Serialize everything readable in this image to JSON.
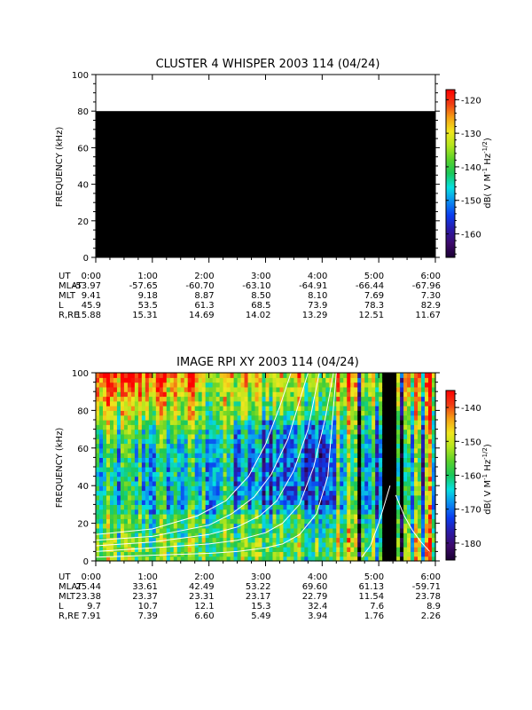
{
  "palette": {
    "background": "#ffffff",
    "empty_data": "#000000",
    "contour": "#ffffff",
    "colormap": [
      "#1a0033",
      "#3d0a6b",
      "#2a1aa8",
      "#0a3cf0",
      "#0a8cf0",
      "#06e0e0",
      "#19c85a",
      "#5ad22a",
      "#b4e61e",
      "#f0e61e",
      "#f5a014",
      "#f03c14",
      "#ff0000"
    ]
  },
  "chart_data": [
    {
      "id": "whisper",
      "type": "heatmap",
      "title": "CLUSTER 4 WHISPER 2003 114 (04/24)",
      "ylabel": "FREQUENCY (kHz)",
      "ylim": [
        0,
        100
      ],
      "yticks": [
        "0",
        "20",
        "40",
        "60",
        "80",
        "100"
      ],
      "xlim": [
        0,
        6
      ],
      "note": "",
      "data_fill": "no data (black) 0–80 kHz",
      "colorbar": {
        "label": "dB( V M-1 Hz-1/2)",
        "label_main": "dB( V M",
        "label_exp1": "-1",
        "label_mid": " Hz",
        "label_exp2": "-1/2",
        "label_end": ")",
        "range": [
          -167,
          -117
        ],
        "ticks": [
          "-120",
          "-130",
          "-140",
          "-150",
          "-160"
        ]
      },
      "ephemeris": {
        "rows": [
          {
            "label": "UT",
            "values": [
              "0:00",
              "1:00",
              "2:00",
              "3:00",
              "4:00",
              "5:00",
              "6:00"
            ]
          },
          {
            "label": "MLAT",
            "values": [
              "-53.97",
              "-57.65",
              "-60.70",
              "-63.10",
              "-64.91",
              "-66.44",
              "-67.96"
            ]
          },
          {
            "label": "MLT",
            "values": [
              "9.41",
              "9.18",
              "8.87",
              "8.50",
              "8.10",
              "7.69",
              "7.30"
            ]
          },
          {
            "label": "L",
            "values": [
              "45.9",
              "53.5",
              "61.3",
              "68.5",
              "73.9",
              "78.3",
              "82.9"
            ]
          },
          {
            "label": "R,RE",
            "values": [
              "15.88",
              "15.31",
              "14.69",
              "14.02",
              "13.29",
              "12.51",
              "11.67"
            ]
          }
        ]
      }
    },
    {
      "id": "rpi",
      "type": "heatmap",
      "title": "IMAGE RPI XY 2003 114 (04/24)",
      "ylabel": "FREQUENCY (kHz)",
      "ylim": [
        0,
        100
      ],
      "yticks": [
        "0",
        "20",
        "40",
        "60",
        "80",
        "100"
      ],
      "xlim": [
        0,
        6
      ],
      "colorbar": {
        "label": "dB( V M-1 Hz-1/2)",
        "label_main": "dB( V M",
        "label_exp1": "-1",
        "label_mid": " Hz",
        "label_exp2": "-1/2",
        "label_end": ")",
        "range": [
          -185,
          -135
        ],
        "ticks": [
          "-140",
          "-150",
          "-160",
          "-170",
          "-180"
        ]
      },
      "ephemeris": {
        "rows": [
          {
            "label": "UT",
            "values": [
              "0:00",
              "1:00",
              "2:00",
              "3:00",
              "4:00",
              "5:00",
              "6:00"
            ]
          },
          {
            "label": "MLAT",
            "values": [
              "25.44",
              "33.61",
              "42.49",
              "53.22",
              "69.60",
              "61.13",
              "-59.71"
            ]
          },
          {
            "label": "MLT",
            "values": [
              "23.38",
              "23.37",
              "23.31",
              "23.17",
              "22.79",
              "11.54",
              "23.78"
            ]
          },
          {
            "label": "L",
            "values": [
              "9.7",
              "10.7",
              "12.1",
              "15.3",
              "32.4",
              "7.6",
              "8.9"
            ]
          },
          {
            "label": "R,RE",
            "values": [
              "7.91",
              "7.39",
              "6.60",
              "5.49",
              "3.94",
              "1.76",
              "2.26"
            ]
          }
        ]
      },
      "overlay_curves": [
        {
          "series": "contour-1",
          "x": [
            0.0,
            1.0,
            2.0,
            2.5,
            3.0,
            3.3,
            3.6,
            3.9,
            4.1,
            4.25
          ],
          "y": [
            2,
            3,
            4,
            5,
            7,
            9,
            14,
            25,
            45,
            100
          ]
        },
        {
          "series": "contour-2",
          "x": [
            0.0,
            1.0,
            2.0,
            2.5,
            3.0,
            3.3,
            3.6,
            3.85,
            4.05,
            4.2
          ],
          "y": [
            5,
            7,
            9,
            11,
            15,
            20,
            30,
            50,
            75,
            100
          ]
        },
        {
          "series": "contour-3",
          "x": [
            0.0,
            1.0,
            2.0,
            2.5,
            2.9,
            3.2,
            3.5,
            3.75,
            3.95
          ],
          "y": [
            8,
            10,
            14,
            18,
            24,
            32,
            48,
            70,
            100
          ]
        },
        {
          "series": "contour-4",
          "x": [
            0.0,
            1.0,
            2.0,
            2.4,
            2.8,
            3.1,
            3.4,
            3.6,
            3.75
          ],
          "y": [
            11,
            13,
            19,
            25,
            34,
            46,
            65,
            85,
            100
          ]
        },
        {
          "series": "contour-5",
          "x": [
            0.0,
            1.0,
            1.8,
            2.3,
            2.7,
            3.0,
            3.25,
            3.45
          ],
          "y": [
            14,
            17,
            24,
            32,
            45,
            62,
            82,
            100
          ]
        },
        {
          "series": "contour-6",
          "x": [
            4.7,
            4.85,
            5.0,
            5.1,
            5.2
          ],
          "y": [
            2,
            8,
            20,
            30,
            40
          ]
        },
        {
          "series": "contour-7",
          "x": [
            5.3,
            5.45,
            5.6,
            5.75,
            5.9
          ],
          "y": [
            35,
            24,
            16,
            10,
            5
          ]
        }
      ]
    }
  ]
}
